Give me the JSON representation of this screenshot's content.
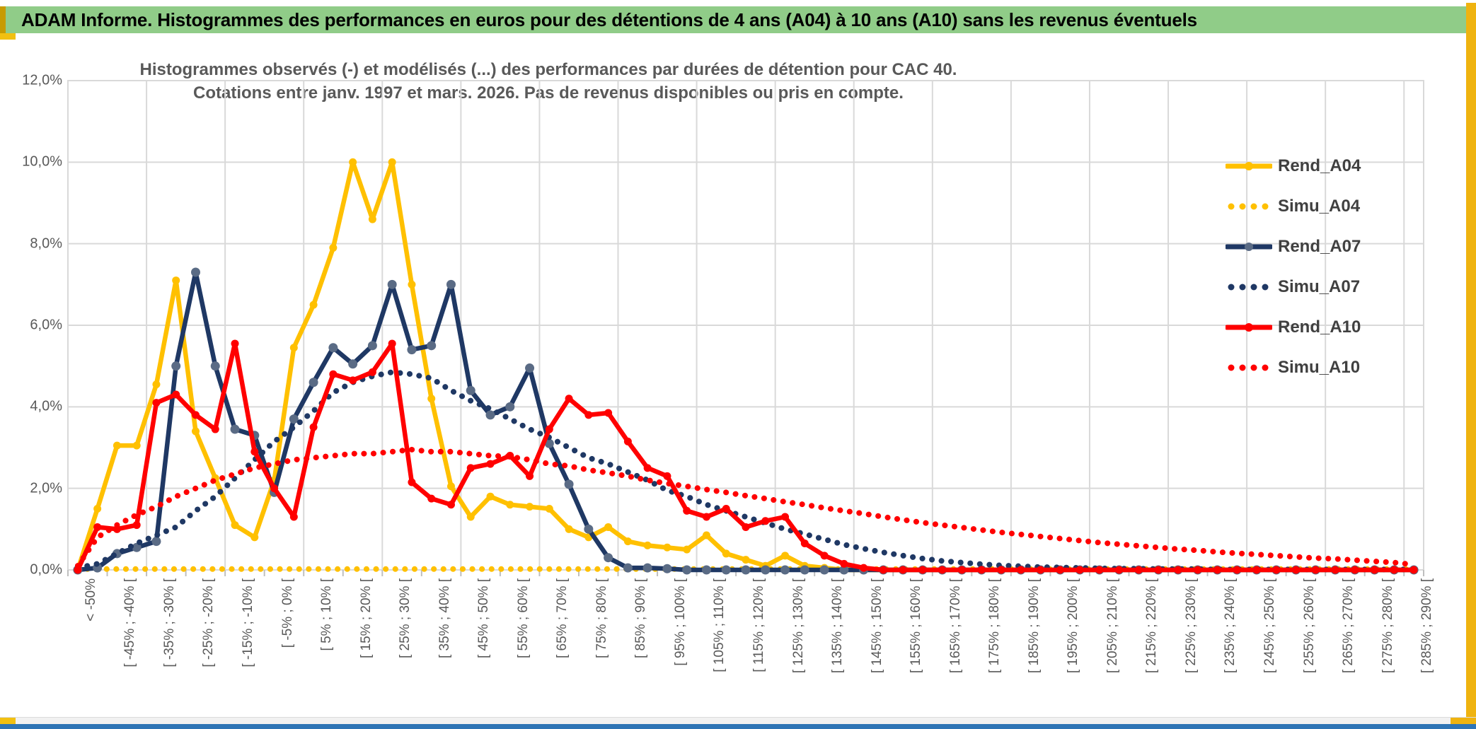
{
  "header": {
    "title": "ADAM Informe. Histogrammes des performances en euros pour des détentions de 4 ans (A04) à 10 ans (A10) sans les revenus éventuels"
  },
  "chart_data": {
    "type": "line",
    "title_line1": "Histogrammes observés (-) et modélisés (...) des performances par durées de détention pour CAC 40.",
    "title_line2": "Cotations entre janv. 1997 et mars. 2026. Pas de revenus disponibles ou pris en compte.",
    "ylim": [
      0,
      12
    ],
    "y_ticks": [
      "0,0%",
      "2,0%",
      "4,0%",
      "6,0%",
      "8,0%",
      "10,0%",
      "12,0%"
    ],
    "label_every": 2,
    "grid": true,
    "legend_position": "right",
    "categories": [
      "< -50%",
      "[ -50% ; -45% [",
      "[ -45% ; -40% [",
      "[ -40% ; -35% [",
      "[ -35% ; -30% [",
      "[ -30% ; -25% [",
      "[ -25% ; -20% [",
      "[ -20% ; -15% [",
      "[ -15% ; -10% [",
      "[ -10% ; -5% [",
      "[ -5% ; 0% [",
      "[ 0% ; 5% [",
      "[ 5% ; 10% [",
      "[ 10% ; 15% [",
      "[ 15% ; 20% [",
      "[ 20% ; 25% [",
      "[ 25% ; 30% [",
      "[ 30% ; 35% [",
      "[ 35% ; 40% [",
      "[ 40% ; 45% [",
      "[ 45% ; 50% [",
      "[ 50% ; 55% [",
      "[ 55% ; 60% [",
      "[ 60% ; 65% [",
      "[ 65% ; 70% [",
      "[ 70% ; 75% [",
      "[ 75% ; 80% [",
      "[ 80% ; 85% [",
      "[ 85% ; 90% [",
      "[ 90% ; 95% [",
      "[ 95% ; 100% [",
      "[ 100% ; 105% [",
      "[ 105% ; 110% [",
      "[ 110% ; 115% [",
      "[ 115% ; 120% [",
      "[ 120% ; 125% [",
      "[ 125% ; 130% [",
      "[ 130% ; 135% [",
      "[ 135% ; 140% [",
      "[ 140% ; 145% [",
      "[ 145% ; 150% [",
      "[ 150% ; 155% [",
      "[ 155% ; 160% [",
      "[ 160% ; 165% [",
      "[ 165% ; 170% [",
      "[ 170% ; 175% [",
      "[ 175% ; 180% [",
      "[ 180% ; 185% [",
      "[ 185% ; 190% [",
      "[ 190% ; 195% [",
      "[ 195% ; 200% [",
      "[ 200% ; 205% [",
      "[ 205% ; 210% [",
      "[ 210% ; 215% [",
      "[ 215% ; 220% [",
      "[ 220% ; 225% [",
      "[ 225% ; 230% [",
      "[ 230% ; 235% [",
      "[ 235% ; 240% [",
      "[ 240% ; 245% [",
      "[ 245% ; 250% [",
      "[ 250% ; 255% [",
      "[ 255% ; 260% [",
      "[ 260% ; 265% [",
      "[ 265% ; 270% [",
      "[ 270% ; 275% [",
      "[ 275% ; 280% [",
      "[ 280% ; 285% [",
      "[ 285% ; 290% ["
    ],
    "series": [
      {
        "name": "Rend_A04",
        "style": "solid",
        "color": "#FFC000",
        "marker_fill": "#FFC000",
        "marker_r": 5.5,
        "values": [
          0,
          1.5,
          3.05,
          3.05,
          4.55,
          7.1,
          3.4,
          2.25,
          1.1,
          0.8,
          2.2,
          5.45,
          6.5,
          7.9,
          10.0,
          8.6,
          10.0,
          7.0,
          4.2,
          2.05,
          1.3,
          1.8,
          1.6,
          1.55,
          1.5,
          1.0,
          0.8,
          1.05,
          0.7,
          0.6,
          0.55,
          0.5,
          0.85,
          0.4,
          0.25,
          0.1,
          0.35,
          0.1,
          0.05,
          0,
          0,
          0,
          0,
          0,
          0,
          0,
          0,
          0,
          0,
          0,
          0,
          0,
          0,
          0,
          0,
          0,
          0,
          0,
          0,
          0,
          0,
          0,
          0,
          0,
          0,
          0,
          0,
          0,
          0
        ]
      },
      {
        "name": "Simu_A04",
        "style": "dotted",
        "color": "#FFC000",
        "values": [
          0.02,
          0.02,
          0.02,
          0.02,
          0.02,
          0.02,
          0.02,
          0.02,
          0.02,
          0.02,
          0.02,
          0.02,
          0.02,
          0.02,
          0.02,
          0.02,
          0.02,
          0.02,
          0.02,
          0.02,
          0.02,
          0.02,
          0.02,
          0.02,
          0.02,
          0.02,
          0.02,
          0.02,
          0.02,
          0.02,
          0.02,
          0.02,
          0.02,
          0.02,
          0.02,
          0.02,
          0.02,
          0.02,
          0.02,
          0.02,
          0.02,
          0.02,
          0.02,
          0.02,
          0.02,
          0.02,
          0.02,
          0.02,
          0.02,
          0.02,
          0.02,
          0.02,
          0.02,
          0.02,
          0.02,
          0.02,
          0.02,
          0.02,
          0.02,
          0.02,
          0.02,
          0.02,
          0.02,
          0.02,
          0.02,
          0.02,
          0.02,
          0.02,
          0.02
        ]
      },
      {
        "name": "Rend_A07",
        "style": "solid",
        "color": "#1F3864",
        "marker_fill": "#5A6B85",
        "marker_r": 6.5,
        "values": [
          0,
          0.05,
          0.4,
          0.55,
          0.7,
          5.0,
          7.3,
          5.0,
          3.45,
          3.3,
          1.9,
          3.7,
          4.6,
          5.45,
          5.05,
          5.5,
          7.0,
          5.4,
          5.5,
          7.0,
          4.4,
          3.8,
          4.0,
          4.95,
          3.1,
          2.1,
          1.0,
          0.3,
          0.05,
          0.05,
          0.03,
          0,
          0,
          0,
          0,
          0,
          0,
          0,
          0,
          0,
          0,
          0,
          0,
          0,
          0,
          0,
          0,
          0,
          0,
          0,
          0,
          0,
          0,
          0,
          0,
          0,
          0,
          0,
          0,
          0,
          0,
          0,
          0,
          0,
          0,
          0,
          0,
          0,
          0
        ]
      },
      {
        "name": "Simu_A07",
        "style": "dotted",
        "color": "#1F3864",
        "values": [
          0.05,
          0.15,
          0.4,
          0.65,
          0.85,
          1.05,
          1.45,
          1.8,
          2.25,
          2.7,
          3.15,
          3.5,
          3.9,
          4.35,
          4.6,
          4.75,
          4.85,
          4.8,
          4.7,
          4.4,
          4.15,
          3.95,
          3.7,
          3.45,
          3.25,
          3.0,
          2.75,
          2.6,
          2.4,
          2.2,
          1.95,
          1.8,
          1.6,
          1.45,
          1.3,
          1.15,
          1.0,
          0.88,
          0.75,
          0.62,
          0.52,
          0.43,
          0.35,
          0.28,
          0.22,
          0.18,
          0.14,
          0.11,
          0.09,
          0.07,
          0.06,
          0.05,
          0.04,
          0.03,
          0.03,
          0.02,
          0.02,
          0.02,
          0.01,
          0.01,
          0.01,
          0.01,
          0.01,
          0.01,
          0.01,
          0.01,
          0.01,
          0.01,
          0.01
        ]
      },
      {
        "name": "Rend_A10",
        "style": "solid",
        "color": "#FF0000",
        "marker_fill": "#FF0000",
        "marker_r": 5.5,
        "values": [
          0,
          1.05,
          1.0,
          1.1,
          4.1,
          4.3,
          3.8,
          3.45,
          5.55,
          2.9,
          2.0,
          1.3,
          3.5,
          4.8,
          4.65,
          4.85,
          5.55,
          2.15,
          1.75,
          1.6,
          2.5,
          2.6,
          2.8,
          2.3,
          3.45,
          4.2,
          3.8,
          3.85,
          3.15,
          2.5,
          2.3,
          1.45,
          1.3,
          1.5,
          1.05,
          1.2,
          1.3,
          0.65,
          0.35,
          0.15,
          0.05,
          0,
          0,
          0,
          0,
          0,
          0,
          0,
          0,
          0,
          0,
          0,
          0,
          0,
          0,
          0,
          0,
          0,
          0,
          0,
          0,
          0,
          0,
          0,
          0,
          0,
          0,
          0,
          0
        ]
      },
      {
        "name": "Simu_A10",
        "style": "dotted",
        "color": "#FF0000",
        "values": [
          0.1,
          0.8,
          1.1,
          1.35,
          1.55,
          1.8,
          2.0,
          2.2,
          2.35,
          2.5,
          2.6,
          2.7,
          2.75,
          2.8,
          2.85,
          2.85,
          2.9,
          2.95,
          2.9,
          2.9,
          2.85,
          2.8,
          2.78,
          2.7,
          2.6,
          2.55,
          2.45,
          2.38,
          2.3,
          2.2,
          2.12,
          2.05,
          1.97,
          1.9,
          1.82,
          1.75,
          1.67,
          1.6,
          1.52,
          1.45,
          1.38,
          1.3,
          1.23,
          1.16,
          1.1,
          1.04,
          0.98,
          0.92,
          0.87,
          0.82,
          0.77,
          0.72,
          0.67,
          0.63,
          0.59,
          0.55,
          0.51,
          0.48,
          0.44,
          0.41,
          0.38,
          0.35,
          0.32,
          0.29,
          0.27,
          0.24,
          0.21,
          0.18,
          0.13
        ]
      }
    ]
  },
  "frame": {
    "header_green": "#90CC88",
    "left_strip_gold": "#C79B00",
    "right_strip_gold": "#EFB310",
    "accent_gold": "#F2C011",
    "bottom_blue": "#2E74B5",
    "grid_color": "#D9D9D9",
    "axis_text_color": "#595959"
  }
}
